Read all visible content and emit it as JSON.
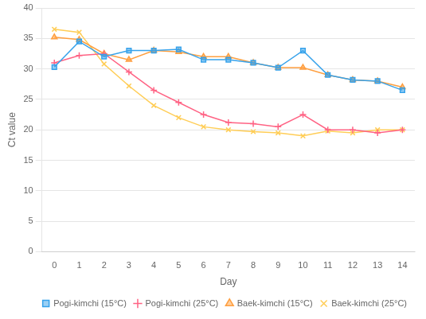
{
  "chart_data": {
    "type": "line",
    "x": [
      0,
      1,
      2,
      3,
      4,
      5,
      6,
      7,
      8,
      9,
      10,
      11,
      12,
      13,
      14
    ],
    "series": [
      {
        "name": "Pogi-kimchi (15°C)",
        "marker": "square",
        "values": [
          30.3,
          34.5,
          32.0,
          33.0,
          33.0,
          33.2,
          31.5,
          31.5,
          31.0,
          30.2,
          33.0,
          29.0,
          28.2,
          28.0,
          26.5
        ]
      },
      {
        "name": "Pogi-kimchi (25°C)",
        "marker": "plus",
        "values": [
          31.0,
          32.2,
          32.5,
          29.5,
          26.5,
          24.5,
          22.5,
          21.2,
          21.0,
          20.5,
          22.5,
          20.0,
          20.0,
          19.5,
          20.0
        ]
      },
      {
        "name": "Baek-kimchi (15°C)",
        "marker": "triangle",
        "values": [
          35.2,
          34.8,
          32.5,
          31.5,
          33.0,
          32.8,
          32.0,
          32.0,
          31.0,
          30.2,
          30.2,
          29.0,
          28.2,
          28.0,
          27.0
        ]
      },
      {
        "name": "Baek-kimchi (25°C)",
        "marker": "x",
        "values": [
          36.5,
          36.0,
          30.8,
          27.2,
          24.0,
          22.0,
          20.5,
          20.0,
          19.7,
          19.5,
          19.0,
          19.8,
          19.5,
          20.0,
          20.0
        ]
      }
    ],
    "xlabel": "Day",
    "ylabel": "Ct value",
    "xlim": [
      -0.5,
      14.5
    ],
    "xticks": [
      0,
      1,
      2,
      3,
      4,
      5,
      6,
      7,
      8,
      9,
      10,
      11,
      12,
      13,
      14
    ],
    "ylim": [
      0,
      40
    ],
    "yticks": [
      0,
      5,
      10,
      15,
      20,
      25,
      30,
      35,
      40
    ],
    "grid": "y",
    "legend": "lower right"
  }
}
